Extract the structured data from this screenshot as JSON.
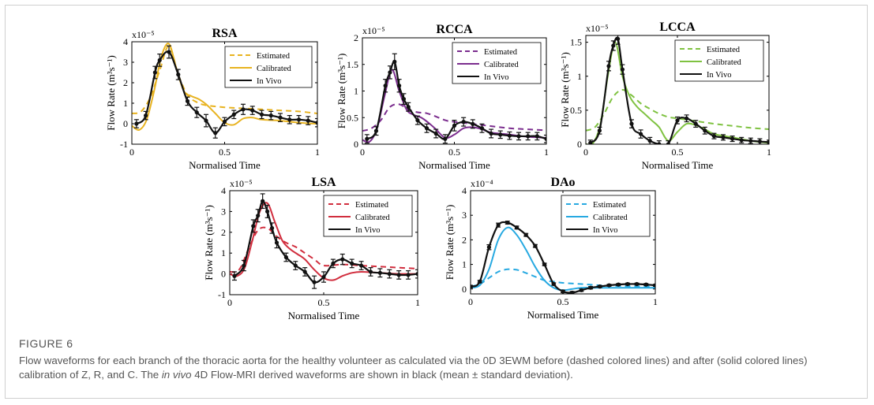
{
  "figure": {
    "label": "FIGURE 6",
    "caption": {
      "part1": "Flow waveforms for each branch of the thoracic aorta for the healthy volunteer as calculated via the 0D 3EWM before (dashed colored lines) and after (solid colored lines) calibration of Z, R, and C. The ",
      "italic": "in vivo",
      "part2": " 4D Flow-MRI derived waveforms are shown in black (mean ± standard deviation)."
    }
  },
  "chart_data": [
    {
      "type": "line",
      "title": "RSA",
      "xlabel": "Normalised Time",
      "ylabel": "Flow Rate (m³s⁻¹)",
      "yexponent_label": "x10⁻⁵",
      "xlim": [
        0,
        1
      ],
      "ylim": [
        -1,
        4
      ],
      "xticks": [
        0,
        0.5,
        1
      ],
      "xtick_labels": [
        "0",
        "0.5",
        "1"
      ],
      "yticks": [
        -1,
        0,
        1,
        2,
        3,
        4
      ],
      "ytick_labels": [
        "-1",
        "0",
        "1",
        "2",
        "3",
        "4"
      ],
      "grid": false,
      "legend": "top-right",
      "color": "#E8B320",
      "series": [
        {
          "name": "Estimated",
          "style": "dashed",
          "color": "#E8B320",
          "x": [
            0,
            0.05,
            0.1,
            0.15,
            0.2,
            0.25,
            0.3,
            0.35,
            0.4,
            0.5,
            0.6,
            0.7,
            0.8,
            0.9,
            1.0
          ],
          "y": [
            0.5,
            0.6,
            1.3,
            2.6,
            3.8,
            2.4,
            1.4,
            1.05,
            0.9,
            0.8,
            0.75,
            0.7,
            0.65,
            0.6,
            0.5
          ]
        },
        {
          "name": "Calibrated",
          "style": "solid",
          "color": "#E8B320",
          "x": [
            0,
            0.04,
            0.08,
            0.12,
            0.16,
            0.2,
            0.24,
            0.28,
            0.32,
            0.36,
            0.4,
            0.45,
            0.5,
            0.55,
            0.6,
            0.65,
            0.7,
            0.8,
            0.9,
            1.0
          ],
          "y": [
            -0.1,
            -0.3,
            0.2,
            1.6,
            3.3,
            3.9,
            2.7,
            1.6,
            1.35,
            1.2,
            0.95,
            0.5,
            0.05,
            -0.05,
            0.25,
            0.3,
            0.2,
            0.15,
            0.05,
            0.0
          ]
        },
        {
          "name": "In Vivo",
          "style": "solid",
          "color": "#111111",
          "x": [
            0.025,
            0.075,
            0.125,
            0.15,
            0.2,
            0.25,
            0.3,
            0.35,
            0.4,
            0.45,
            0.5,
            0.55,
            0.6,
            0.65,
            0.7,
            0.75,
            0.8,
            0.85,
            0.9,
            0.95,
            1.0
          ],
          "y": [
            0.0,
            0.4,
            2.5,
            3.1,
            3.5,
            2.4,
            1.1,
            0.55,
            0.15,
            -0.45,
            0.1,
            0.45,
            0.7,
            0.65,
            0.45,
            0.4,
            0.3,
            0.2,
            0.2,
            0.15,
            0.05
          ],
          "err": [
            0.2,
            0.2,
            0.3,
            0.3,
            0.3,
            0.25,
            0.2,
            0.25,
            0.3,
            0.25,
            0.2,
            0.2,
            0.25,
            0.2,
            0.2,
            0.2,
            0.2,
            0.2,
            0.2,
            0.2,
            0.2
          ]
        }
      ]
    },
    {
      "type": "line",
      "title": "RCCA",
      "xlabel": "Normalised Time",
      "ylabel": "Flow Rate (m³s⁻¹)",
      "yexponent_label": "x10⁻⁵",
      "xlim": [
        0,
        1
      ],
      "ylim": [
        0,
        2
      ],
      "xticks": [
        0,
        0.5,
        1
      ],
      "xtick_labels": [
        "0",
        "0.5",
        "1"
      ],
      "yticks": [
        0,
        0.5,
        1,
        1.5,
        2
      ],
      "ytick_labels": [
        "0",
        "0.5",
        "1",
        "1.5",
        "2"
      ],
      "grid": false,
      "legend": "top-right",
      "color": "#7B2D8E",
      "series": [
        {
          "name": "Estimated",
          "style": "dashed",
          "color": "#7B2D8E",
          "x": [
            0,
            0.05,
            0.1,
            0.15,
            0.2,
            0.25,
            0.3,
            0.35,
            0.4,
            0.45,
            0.5,
            0.6,
            0.7,
            0.8,
            0.9,
            1.0
          ],
          "y": [
            0.25,
            0.3,
            0.45,
            0.7,
            0.75,
            0.65,
            0.6,
            0.58,
            0.52,
            0.45,
            0.42,
            0.38,
            0.34,
            0.3,
            0.28,
            0.26
          ]
        },
        {
          "name": "Calibrated",
          "style": "solid",
          "color": "#7B2D8E",
          "x": [
            0,
            0.04,
            0.08,
            0.12,
            0.16,
            0.2,
            0.24,
            0.28,
            0.32,
            0.36,
            0.4,
            0.45,
            0.5,
            0.55,
            0.6,
            0.65,
            0.7,
            0.8,
            0.9,
            1.0
          ],
          "y": [
            0.08,
            0.05,
            0.3,
            0.9,
            1.4,
            1.0,
            0.65,
            0.55,
            0.5,
            0.4,
            0.28,
            0.12,
            0.18,
            0.3,
            0.32,
            0.28,
            0.22,
            0.18,
            0.14,
            0.12
          ]
        },
        {
          "name": "In Vivo",
          "style": "solid",
          "color": "#111111",
          "x": [
            0.025,
            0.075,
            0.125,
            0.15,
            0.175,
            0.2,
            0.225,
            0.25,
            0.3,
            0.35,
            0.4,
            0.45,
            0.5,
            0.55,
            0.6,
            0.65,
            0.7,
            0.75,
            0.8,
            0.85,
            0.9,
            0.95,
            1.0
          ],
          "y": [
            0.1,
            0.25,
            1.1,
            1.35,
            1.55,
            1.1,
            0.85,
            0.7,
            0.45,
            0.3,
            0.2,
            0.1,
            0.35,
            0.42,
            0.38,
            0.3,
            0.2,
            0.18,
            0.16,
            0.15,
            0.15,
            0.15,
            0.1
          ],
          "err": [
            0.08,
            0.08,
            0.12,
            0.12,
            0.15,
            0.12,
            0.1,
            0.08,
            0.08,
            0.08,
            0.08,
            0.08,
            0.1,
            0.08,
            0.08,
            0.08,
            0.08,
            0.07,
            0.07,
            0.07,
            0.07,
            0.07,
            0.07
          ]
        }
      ]
    },
    {
      "type": "line",
      "title": "LCCA",
      "xlabel": "Normalised Time",
      "ylabel": "Flow Rate (m³s⁻¹)",
      "yexponent_label": "x10⁻⁵",
      "xlim": [
        0,
        1
      ],
      "ylim": [
        0,
        1.6
      ],
      "xticks": [
        0,
        0.5,
        1
      ],
      "xtick_labels": [
        "0",
        "0.5",
        "1"
      ],
      "yticks": [
        0,
        0.5,
        1,
        1.5
      ],
      "ytick_labels": [
        "0",
        "0.5",
        "1",
        "1.5"
      ],
      "grid": false,
      "legend": "top-right",
      "color": "#7FC241",
      "series": [
        {
          "name": "Estimated",
          "style": "dashed",
          "color": "#7FC241",
          "x": [
            0,
            0.05,
            0.1,
            0.15,
            0.2,
            0.25,
            0.3,
            0.35,
            0.4,
            0.45,
            0.5,
            0.6,
            0.7,
            0.8,
            0.9,
            1.0
          ],
          "y": [
            0.2,
            0.25,
            0.45,
            0.7,
            0.8,
            0.72,
            0.6,
            0.52,
            0.45,
            0.4,
            0.38,
            0.34,
            0.3,
            0.27,
            0.24,
            0.22
          ]
        },
        {
          "name": "Calibrated",
          "style": "solid",
          "color": "#7FC241",
          "x": [
            0,
            0.04,
            0.08,
            0.12,
            0.16,
            0.2,
            0.24,
            0.28,
            0.32,
            0.36,
            0.4,
            0.45,
            0.5,
            0.55,
            0.6,
            0.65,
            0.7,
            0.8,
            0.9,
            1.0
          ],
          "y": [
            0.0,
            0.02,
            0.3,
            1.0,
            1.5,
            1.0,
            0.7,
            0.55,
            0.45,
            0.35,
            0.25,
            0.05,
            0.18,
            0.3,
            0.28,
            0.22,
            0.15,
            0.1,
            0.05,
            0.02
          ]
        },
        {
          "name": "In Vivo",
          "style": "solid",
          "color": "#111111",
          "x": [
            0.025,
            0.075,
            0.125,
            0.15,
            0.175,
            0.2,
            0.25,
            0.3,
            0.35,
            0.4,
            0.45,
            0.5,
            0.55,
            0.6,
            0.65,
            0.7,
            0.75,
            0.8,
            0.85,
            0.9,
            0.95,
            1.0
          ],
          "y": [
            0.02,
            0.2,
            1.15,
            1.45,
            1.55,
            1.1,
            0.3,
            0.15,
            0.05,
            0.0,
            0.0,
            0.35,
            0.38,
            0.3,
            0.2,
            0.12,
            0.1,
            0.08,
            0.06,
            0.05,
            0.04,
            0.03
          ],
          "err": [
            0.04,
            0.05,
            0.07,
            0.07,
            0.08,
            0.07,
            0.06,
            0.06,
            0.05,
            0.05,
            0.05,
            0.05,
            0.05,
            0.05,
            0.05,
            0.04,
            0.04,
            0.04,
            0.04,
            0.04,
            0.04,
            0.03
          ]
        }
      ]
    },
    {
      "type": "line",
      "title": "LSA",
      "xlabel": "Normalised Time",
      "ylabel": "Flow Rate (m³s⁻¹)",
      "yexponent_label": "x10⁻⁵",
      "xlim": [
        0,
        1
      ],
      "ylim": [
        -1,
        4
      ],
      "xticks": [
        0,
        0.5,
        1
      ],
      "xtick_labels": [
        "0",
        "0.5",
        "1"
      ],
      "yticks": [
        -1,
        0,
        1,
        2,
        3,
        4
      ],
      "ytick_labels": [
        "-1",
        "0",
        "1",
        "2",
        "3",
        "4"
      ],
      "grid": false,
      "legend": "top-right",
      "color": "#D12E3E",
      "series": [
        {
          "name": "Estimated",
          "style": "dashed",
          "color": "#D12E3E",
          "x": [
            0,
            0.05,
            0.1,
            0.15,
            0.2,
            0.25,
            0.3,
            0.35,
            0.4,
            0.45,
            0.5,
            0.6,
            0.7,
            0.8,
            0.9,
            1.0
          ],
          "y": [
            0.1,
            0.2,
            1.2,
            2.1,
            2.2,
            1.8,
            1.5,
            1.3,
            1.0,
            0.7,
            0.4,
            0.45,
            0.4,
            0.35,
            0.3,
            0.25
          ]
        },
        {
          "name": "Calibrated",
          "style": "solid",
          "color": "#D12E3E",
          "x": [
            0,
            0.04,
            0.08,
            0.12,
            0.16,
            0.2,
            0.24,
            0.28,
            0.32,
            0.36,
            0.4,
            0.45,
            0.5,
            0.55,
            0.6,
            0.65,
            0.7,
            0.8,
            0.9,
            1.0
          ],
          "y": [
            0.0,
            -0.1,
            0.3,
            1.6,
            3.0,
            3.4,
            2.5,
            1.6,
            1.2,
            0.95,
            0.7,
            0.2,
            -0.2,
            -0.3,
            -0.1,
            0.05,
            0.1,
            0.05,
            0.0,
            0.0
          ]
        },
        {
          "name": "In Vivo",
          "style": "solid",
          "color": "#111111",
          "x": [
            0.025,
            0.075,
            0.125,
            0.15,
            0.175,
            0.2,
            0.225,
            0.25,
            0.3,
            0.35,
            0.4,
            0.45,
            0.5,
            0.55,
            0.6,
            0.65,
            0.7,
            0.75,
            0.8,
            0.85,
            0.9,
            0.95,
            1.0
          ],
          "y": [
            -0.1,
            0.4,
            2.3,
            2.8,
            3.5,
            3.0,
            2.2,
            1.5,
            0.8,
            0.4,
            0.1,
            -0.4,
            -0.15,
            0.5,
            0.7,
            0.5,
            0.4,
            0.1,
            0.05,
            0.0,
            -0.05,
            -0.05,
            0.0
          ],
          "err": [
            0.2,
            0.25,
            0.3,
            0.3,
            0.35,
            0.3,
            0.25,
            0.25,
            0.2,
            0.2,
            0.2,
            0.3,
            0.25,
            0.2,
            0.25,
            0.2,
            0.2,
            0.2,
            0.2,
            0.2,
            0.2,
            0.2,
            0.2
          ]
        }
      ]
    },
    {
      "type": "line",
      "title": "DAo",
      "xlabel": "Normalised Time",
      "ylabel": "Flow Rate (m³s⁻¹)",
      "yexponent_label": "x10⁻⁴",
      "xlim": [
        0,
        1
      ],
      "ylim": [
        -0.2,
        4
      ],
      "xticks": [
        0,
        0.5,
        1
      ],
      "xtick_labels": [
        "0",
        "0.5",
        "1"
      ],
      "yticks": [
        0,
        1,
        2,
        3,
        4
      ],
      "ytick_labels": [
        "0",
        "1",
        "2",
        "3",
        "4"
      ],
      "grid": false,
      "legend": "top-right",
      "color": "#27A9E1",
      "series": [
        {
          "name": "Estimated",
          "style": "dashed",
          "color": "#27A9E1",
          "x": [
            0,
            0.05,
            0.1,
            0.15,
            0.2,
            0.25,
            0.3,
            0.35,
            0.4,
            0.45,
            0.5,
            0.6,
            0.7,
            0.8,
            0.9,
            1.0
          ],
          "y": [
            0.1,
            0.2,
            0.45,
            0.7,
            0.8,
            0.78,
            0.65,
            0.5,
            0.35,
            0.3,
            0.25,
            0.2,
            0.15,
            0.12,
            0.1,
            0.1
          ]
        },
        {
          "name": "Calibrated",
          "style": "solid",
          "color": "#27A9E1",
          "x": [
            0,
            0.05,
            0.1,
            0.15,
            0.2,
            0.25,
            0.3,
            0.35,
            0.4,
            0.45,
            0.5,
            0.55,
            0.6,
            0.65,
            0.7,
            0.8,
            0.9,
            1.0
          ],
          "y": [
            0.05,
            0.15,
            0.8,
            2.0,
            2.5,
            2.2,
            1.6,
            0.9,
            0.35,
            0.05,
            -0.05,
            0.0,
            0.05,
            0.05,
            0.05,
            0.05,
            0.05,
            0.05
          ]
        },
        {
          "name": "In Vivo",
          "style": "solid",
          "color": "#111111",
          "x": [
            0,
            0.05,
            0.1,
            0.15,
            0.2,
            0.25,
            0.3,
            0.35,
            0.4,
            0.45,
            0.5,
            0.55,
            0.6,
            0.65,
            0.7,
            0.75,
            0.8,
            0.85,
            0.9,
            0.95,
            1.0
          ],
          "y": [
            0.1,
            0.3,
            1.7,
            2.6,
            2.7,
            2.5,
            2.2,
            1.75,
            1.0,
            0.2,
            -0.1,
            -0.15,
            -0.05,
            0.05,
            0.1,
            0.15,
            0.18,
            0.2,
            0.2,
            0.18,
            0.15
          ],
          "err": [
            0.05,
            0.05,
            0.1,
            0.08,
            0.06,
            0.06,
            0.06,
            0.06,
            0.05,
            0.05,
            0.05,
            0.05,
            0.05,
            0.05,
            0.04,
            0.04,
            0.04,
            0.04,
            0.04,
            0.04,
            0.04
          ]
        }
      ]
    }
  ]
}
